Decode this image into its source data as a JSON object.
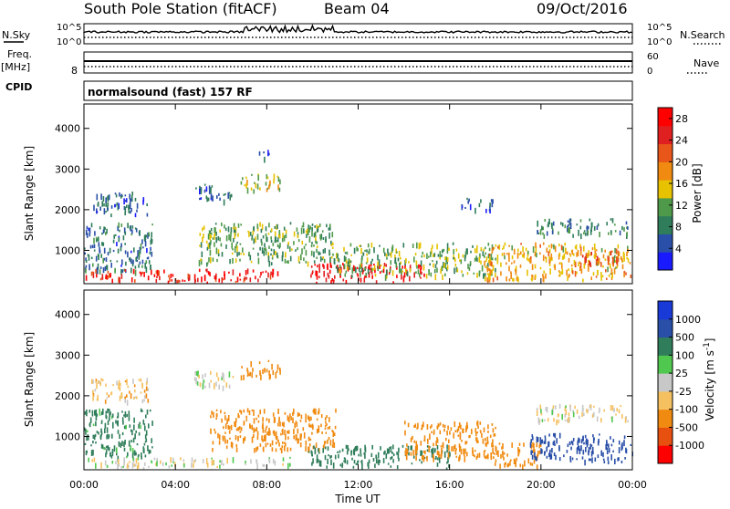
{
  "header": {
    "station": "South Pole Station (fitACF)",
    "beam": "Beam 04",
    "date": "09/Oct/2016"
  },
  "aux_panels": {
    "nsky_label": "N.Sky",
    "nsearch_label": "N.Search",
    "noise_ticks_left": [
      "10^5",
      "10^0"
    ],
    "noise_ticks_right": [
      "10^5",
      "10^0"
    ],
    "freq_label": "Freq.",
    "freq_unit": "[MHz]",
    "freq_ticks": [
      "8"
    ],
    "nave_label": "Nave",
    "nave_ticks": [
      "60",
      "0"
    ],
    "cpid_label": "CPID",
    "cpid_text": "normalsound (fast) 157 RF"
  },
  "colors": {
    "power_scale": [
      "#1a1aff",
      "#2a4fa8",
      "#2f7d5a",
      "#4f9a4a",
      "#e6c200",
      "#f08a10",
      "#e8561a",
      "#e02020",
      "#ff0000"
    ],
    "velocity_scale": [
      "#ff0000",
      "#e85010",
      "#f08a10",
      "#f5c060",
      "#c8c8c8",
      "#50c850",
      "#2f7d5a",
      "#2a4fa8",
      "#1a3ad8"
    ]
  },
  "chart_data": [
    {
      "type": "heatmap",
      "title": "Power",
      "ylabel": "Slant Range [km]",
      "xlabel": "",
      "x_ticks": [
        "00:00",
        "04:00",
        "08:00",
        "12:00",
        "16:00",
        "20:00",
        "00:00"
      ],
      "x_range_hours": [
        0,
        24
      ],
      "y_range_km": [
        180,
        4600
      ],
      "y_ticks": [
        1000,
        2000,
        3000,
        4000
      ],
      "colorbar": {
        "label": "Power [dB]",
        "ticks": [
          4,
          8,
          12,
          16,
          20,
          24,
          28
        ],
        "range": [
          0,
          30
        ]
      },
      "regions": [
        {
          "t0": 0.3,
          "t1": 2.8,
          "r0": 1900,
          "r1": 2450,
          "value": 6
        },
        {
          "t0": 0.0,
          "t1": 3.0,
          "r0": 500,
          "r1": 1700,
          "value": 7
        },
        {
          "t0": 0.0,
          "t1": 8.5,
          "r0": 180,
          "r1": 560,
          "value": 26
        },
        {
          "t0": 4.8,
          "t1": 6.5,
          "r0": 2250,
          "r1": 2650,
          "value": 6
        },
        {
          "t0": 6.8,
          "t1": 8.6,
          "r0": 2500,
          "r1": 2900,
          "value": 14
        },
        {
          "t0": 7.5,
          "t1": 8.1,
          "r0": 3300,
          "r1": 3500,
          "value": 5
        },
        {
          "t0": 5.0,
          "t1": 11.0,
          "r0": 700,
          "r1": 1700,
          "value": 11
        },
        {
          "t0": 9.8,
          "t1": 15.0,
          "r0": 200,
          "r1": 700,
          "value": 28
        },
        {
          "t0": 11.0,
          "t1": 18.0,
          "r0": 400,
          "r1": 1200,
          "value": 12
        },
        {
          "t0": 17.5,
          "t1": 24.0,
          "r0": 300,
          "r1": 1200,
          "value": 17
        },
        {
          "t0": 19.8,
          "t1": 23.8,
          "r0": 1400,
          "r1": 1800,
          "value": 9
        },
        {
          "t0": 16.5,
          "t1": 18.0,
          "r0": 2000,
          "r1": 2300,
          "value": 5
        },
        {
          "t0": 21.5,
          "t1": 23.5,
          "r0": 700,
          "r1": 1000,
          "value": 22
        }
      ]
    },
    {
      "type": "heatmap",
      "title": "Velocity",
      "ylabel": "Slant Range [km]",
      "xlabel": "Time UT",
      "x_ticks": [
        "00:00",
        "04:00",
        "08:00",
        "12:00",
        "16:00",
        "20:00",
        "00:00"
      ],
      "x_range_hours": [
        0,
        24
      ],
      "y_range_km": [
        180,
        4600
      ],
      "y_ticks": [
        1000,
        2000,
        3000,
        4000
      ],
      "colorbar": {
        "label": "Velocity [m s^-1]",
        "ticks": [
          "1000",
          "500",
          "100",
          "25",
          "-25",
          "-100",
          "-500",
          "-1000"
        ]
      },
      "regions": [
        {
          "t0": 0.3,
          "t1": 2.8,
          "r0": 1900,
          "r1": 2450,
          "value": -60
        },
        {
          "t0": 0.0,
          "t1": 3.0,
          "r0": 500,
          "r1": 1700,
          "value": 150
        },
        {
          "t0": 5.5,
          "t1": 11.0,
          "r0": 700,
          "r1": 1700,
          "value": -300
        },
        {
          "t0": 6.8,
          "t1": 8.6,
          "r0": 2500,
          "r1": 2900,
          "value": -200
        },
        {
          "t0": 4.8,
          "t1": 6.5,
          "r0": 2250,
          "r1": 2650,
          "value": 0
        },
        {
          "t0": 9.8,
          "t1": 16.0,
          "r0": 200,
          "r1": 800,
          "value": 200
        },
        {
          "t0": 14.0,
          "t1": 18.0,
          "r0": 500,
          "r1": 1400,
          "value": -200
        },
        {
          "t0": 17.5,
          "t1": 20.0,
          "r0": 300,
          "r1": 900,
          "value": -400
        },
        {
          "t0": 19.5,
          "t1": 24.0,
          "r0": 400,
          "r1": 1100,
          "value": 700
        },
        {
          "t0": 19.8,
          "t1": 23.8,
          "r0": 1400,
          "r1": 1800,
          "value": -30
        },
        {
          "t0": 0.0,
          "t1": 9.0,
          "r0": 180,
          "r1": 500,
          "value": 0
        }
      ]
    }
  ]
}
